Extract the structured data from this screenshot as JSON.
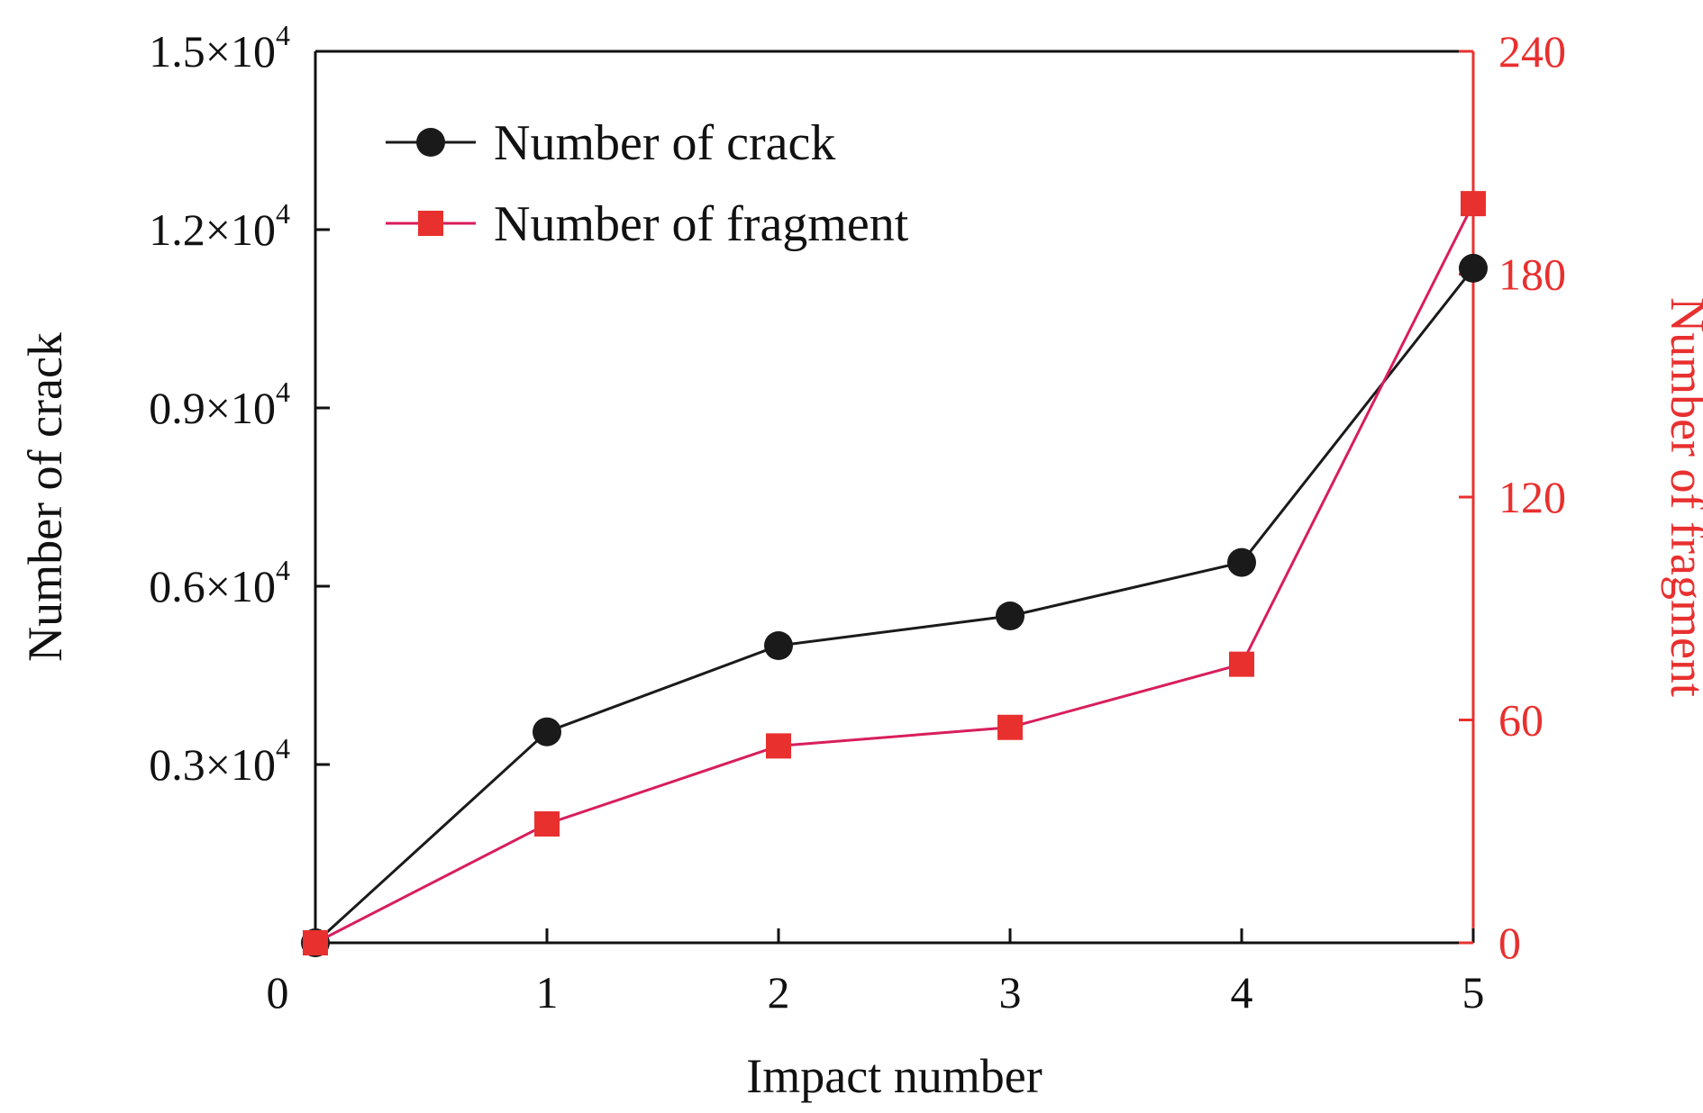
{
  "chart_data": {
    "type": "line",
    "title": "",
    "xlabel": "Impact number",
    "ylabel_left": "Number of crack",
    "ylabel_right": "Number of fragment",
    "x": [
      0,
      1,
      2,
      3,
      4,
      5
    ],
    "x_tick_labels": [
      "0",
      "1",
      "2",
      "3",
      "4",
      "5"
    ],
    "xlim": [
      0,
      5
    ],
    "ylim_left": [
      0,
      15000
    ],
    "ylim_right": [
      0,
      240
    ],
    "left_ticks": [
      {
        "value": 3000,
        "mantissa": "0.3×10",
        "exp": "4"
      },
      {
        "value": 6000,
        "mantissa": "0.6×10",
        "exp": "4"
      },
      {
        "value": 9000,
        "mantissa": "0.9×10",
        "exp": "4"
      },
      {
        "value": 12000,
        "mantissa": "1.2×10",
        "exp": "4"
      },
      {
        "value": 15000,
        "mantissa": "1.5×10",
        "exp": "4"
      }
    ],
    "right_ticks": [
      {
        "value": 0,
        "label": "0"
      },
      {
        "value": 60,
        "label": "60"
      },
      {
        "value": 120,
        "label": "120"
      },
      {
        "value": 180,
        "label": "180"
      },
      {
        "value": 240,
        "label": "240"
      }
    ],
    "grid": false,
    "legend_position": "top-left",
    "series": [
      {
        "name": "Number of crack",
        "axis": "left",
        "marker": "circle",
        "color": "#1a1a1a",
        "line_color": "#1a1a1a",
        "values": [
          0,
          3550,
          5000,
          5500,
          6400,
          11350
        ]
      },
      {
        "name": "Number of fragment",
        "axis": "right",
        "marker": "square",
        "color": "#e8302f",
        "line_color": "#d81e5b",
        "values": [
          0,
          32,
          53,
          58,
          75,
          199
        ]
      }
    ],
    "right_axis_color": "#e8302f"
  }
}
